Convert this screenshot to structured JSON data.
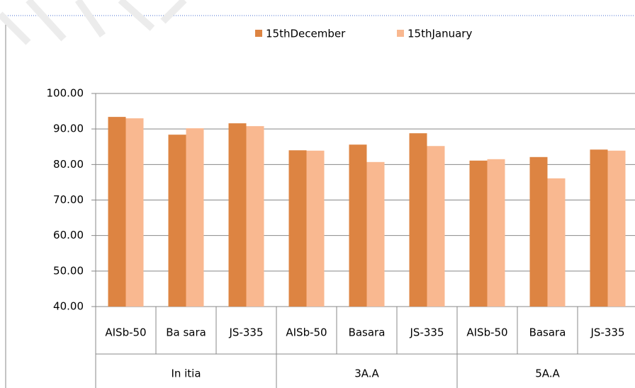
{
  "chart_data": {
    "type": "bar",
    "categories": [
      "AISb-50",
      "Ba sara",
      "JS-335",
      "AISb-50",
      "Basara",
      "JS-335",
      "AISb-50",
      "Basara",
      "JS-335"
    ],
    "groups": [
      "In itia",
      "3A.A",
      "5A.A"
    ],
    "series": [
      {
        "name": "15thDecember",
        "color": "#dd8442",
        "values": [
          93.4,
          88.4,
          91.6,
          84.0,
          85.6,
          88.8,
          81.1,
          82.1,
          84.2
        ]
      },
      {
        "name": "15thJanuary",
        "color": "#f9b890",
        "values": [
          93.0,
          90.2,
          90.8,
          83.9,
          80.7,
          85.2,
          81.5,
          76.1,
          83.9
        ]
      }
    ],
    "ylim": [
      40,
      100
    ],
    "yticks": [
      {
        "value": 40,
        "label": "40.00"
      },
      {
        "value": 50,
        "label": "50.00"
      },
      {
        "value": 60,
        "label": "60.00"
      },
      {
        "value": 70,
        "label": "70.00"
      },
      {
        "value": 80,
        "label": "80.00"
      },
      {
        "value": 90,
        "label": "90.00"
      },
      {
        "value": 100,
        "label": "100.00"
      }
    ],
    "grid": true,
    "legend": "top"
  }
}
